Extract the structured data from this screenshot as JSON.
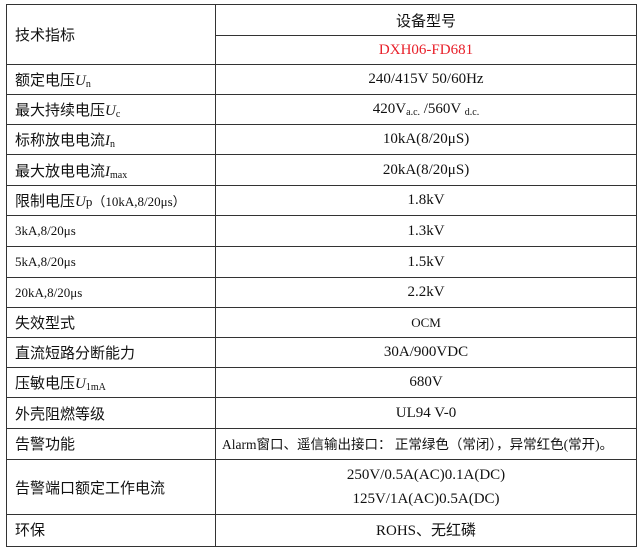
{
  "header": {
    "label": "技术指标",
    "model_heading": "设备型号",
    "model": "DXH06-FD681",
    "model_color": "#e8202a"
  },
  "rows": [
    {
      "label": "额定电压",
      "sym": "U",
      "sub": "n",
      "value": "240/415V 50/60Hz"
    },
    {
      "label": "最大持续电压",
      "sym": "U",
      "sub": "c",
      "value": "420V",
      "value_sub1": "a.c.",
      "value_mid": " /560V ",
      "value_sub2": "d.c."
    },
    {
      "label": "标称放电电流",
      "sym": "I",
      "sub": "n",
      "value": "10kA(8/20μS)"
    },
    {
      "label": "最大放电电流",
      "sym": "I",
      "sub": "max",
      "value": "20kA(8/20μS)"
    },
    {
      "label": "限制电压",
      "sym": "U",
      "suffix": "p（10kA,8/20μs）",
      "value": "1.8kV"
    },
    {
      "label": "3kA,8/20μs",
      "value": "1.3kV"
    },
    {
      "label": "5kA,8/20μs",
      "value": "1.5kV"
    },
    {
      "label": "20kA,8/20μs",
      "value": "2.2kV"
    },
    {
      "label": "失效型式",
      "value": "OCM"
    },
    {
      "label": "直流短路分断能力",
      "value": "30A/900VDC"
    },
    {
      "label": "压敏电压",
      "sym": "U",
      "sub": "1mA",
      "value": "680V"
    },
    {
      "label": "外壳阻燃等级",
      "value": "UL94 V-0"
    },
    {
      "label": "告警功能",
      "value": "Alarm窗口、遥信输出接口： 正常绿色（常闭），异常红色(常开)。"
    },
    {
      "label": "告警端口额定工作电流",
      "lines": [
        "250V/0.5A(AC)0.1A(DC)",
        "125V/1A(AC)0.5A(DC)"
      ]
    },
    {
      "label": "环保",
      "value": "ROHS、无红磷"
    }
  ]
}
